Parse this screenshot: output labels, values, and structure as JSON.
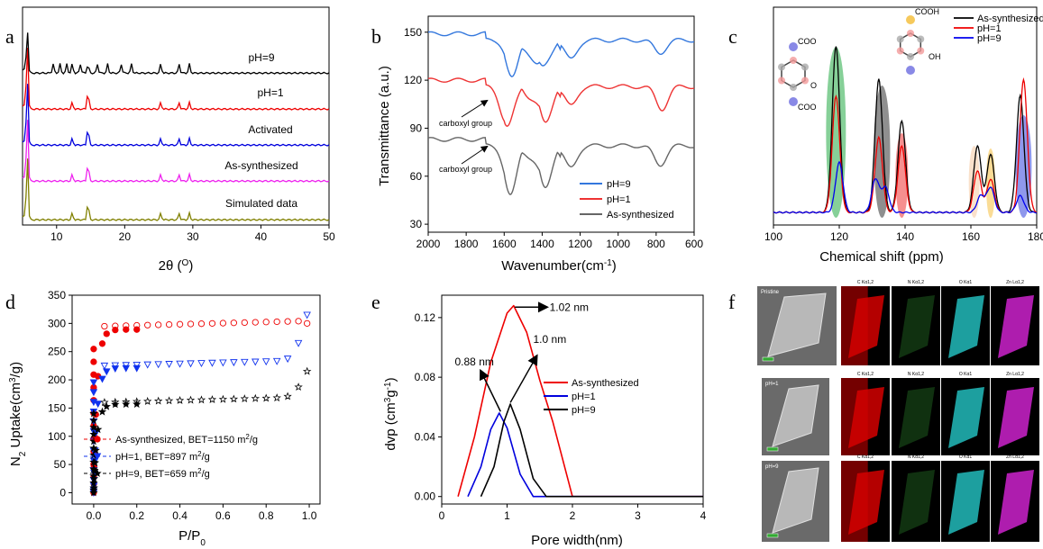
{
  "panels": {
    "a": {
      "letter": "a",
      "xlabel": "2θ (O)",
      "xlabel_main": "2θ (",
      "xlabel_sup": "O",
      "xlabel_close": ")"
    },
    "b": {
      "letter": "b",
      "xlabel": "Wavenumber(cm-1)",
      "ylabel": "Transmittance (a.u.)",
      "anno1": "carboxyl group",
      "anno2": "carboxyl group"
    },
    "c": {
      "letter": "c",
      "xlabel": "Chemical shift (ppm)",
      "struct_cooh": "COOH",
      "struct_oh": "OH",
      "struct_coo1": "COO",
      "struct_coo2": "COO",
      "struct_o": "O"
    },
    "d": {
      "letter": "d",
      "xlabel": "P/P0",
      "ylabel": "N2 Uptake(cm3/g)"
    },
    "e": {
      "letter": "e",
      "xlabel": "Pore width(nm)",
      "ylabel": "dvp (cm3g-1)",
      "anno1": "1.02 nm",
      "anno2": "1.0 nm",
      "anno3": "0.88 nm"
    },
    "f": {
      "letter": "f",
      "rows": [
        {
          "sem_label": "Pristine",
          "maps": [
            "C Kα1,2",
            "N Kα1,2",
            "O Kα1",
            "Zn Lα1,2"
          ]
        },
        {
          "sem_label": "pH=1",
          "maps": [
            "C Kα1,2",
            "N Kα1,2",
            "O Kα1",
            "Zn Lα1,2"
          ]
        },
        {
          "sem_label": "pH=9",
          "maps": [
            "C Kα1,2",
            "N Kα1,2",
            "O Kα1",
            "Zn Lα1,2"
          ]
        }
      ],
      "colors": {
        "C": "#d40000",
        "N": "#2e8b2e",
        "O": "#22bbbb",
        "Zn": "#cc22cc"
      }
    }
  },
  "chart_data": [
    {
      "panel": "a",
      "type": "line",
      "xlabel": "2θ (O)",
      "ylabel": "",
      "xlim": [
        5,
        50
      ],
      "xticks": [
        10,
        20,
        30,
        40,
        50
      ],
      "series": [
        {
          "name": "pH=9",
          "color": "#808000",
          "offset": 4,
          "peaks": [
            5.7,
            12.3,
            14.6,
            25.3,
            28.0,
            29.5
          ]
        },
        {
          "name": "pH=1",
          "color": "#ee22ee",
          "offset": 3,
          "peaks": [
            5.7,
            12.3,
            14.6,
            25.3,
            28.0,
            29.5
          ]
        },
        {
          "name": "Activated",
          "color": "#0000dd",
          "offset": 2,
          "peaks": [
            5.7,
            12.3,
            14.6,
            25.3,
            28.0,
            29.5
          ]
        },
        {
          "name": "As-synthesized",
          "color": "#ee0000",
          "offset": 1,
          "peaks": [
            5.7,
            12.3,
            14.6,
            25.3,
            28.0,
            29.5
          ]
        },
        {
          "name": "Simulated data",
          "color": "#000000",
          "offset": 0,
          "peaks": [
            5.7,
            9.5,
            10.5,
            11.5,
            12.3,
            13.5,
            14.6,
            16.0,
            17.5,
            19.5,
            21.0,
            25.3,
            28.0,
            29.5
          ]
        }
      ]
    },
    {
      "panel": "b",
      "type": "line",
      "xlabel": "Wavenumber(cm-1)",
      "ylabel": "Transmittance (a.u.)",
      "xlim": [
        2000,
        600
      ],
      "ylim": [
        25,
        160
      ],
      "xticks": [
        2000,
        1800,
        1600,
        1400,
        1200,
        1000,
        800,
        600
      ],
      "yticks": [
        30,
        60,
        90,
        120,
        150
      ],
      "series": [
        {
          "name": "pH=9",
          "color": "#3377dd",
          "base": 149,
          "dips": [
            [
              1560,
              18
            ],
            [
              1410,
              15
            ],
            [
              1250,
              12
            ],
            [
              780,
              8
            ]
          ]
        },
        {
          "name": "pH=1",
          "color": "#ee3333",
          "base": 120,
          "dips": [
            [
              1590,
              22
            ],
            [
              1390,
              18
            ],
            [
              1250,
              12
            ],
            [
              770,
              14
            ]
          ]
        },
        {
          "name": "As-synthesized",
          "color": "#666666",
          "base": 83,
          "dips": [
            [
              1570,
              26
            ],
            [
              1390,
              22
            ],
            [
              1250,
              14
            ],
            [
              780,
              12
            ]
          ]
        }
      ]
    },
    {
      "panel": "c",
      "type": "line",
      "xlabel": "Chemical shift (ppm)",
      "xlim": [
        100,
        180
      ],
      "xticks": [
        100,
        120,
        140,
        160,
        180
      ],
      "series": [
        {
          "name": "As-synthesized",
          "color": "#000000",
          "peaks": [
            [
              119,
              1.0
            ],
            [
              132,
              0.8
            ],
            [
              139,
              0.55
            ],
            [
              162,
              0.4
            ],
            [
              166,
              0.35
            ],
            [
              175,
              0.7
            ]
          ]
        },
        {
          "name": "pH=1",
          "color": "#ee0000",
          "peaks": [
            [
              119,
              0.7
            ],
            [
              132,
              0.45
            ],
            [
              139,
              0.4
            ],
            [
              162,
              0.25
            ],
            [
              166,
              0.2
            ],
            [
              176,
              0.8
            ]
          ]
        },
        {
          "name": "pH=9",
          "color": "#0000ee",
          "peaks": [
            [
              120,
              0.3
            ],
            [
              131,
              0.2
            ],
            [
              134,
              0.15
            ],
            [
              163,
              0.1
            ],
            [
              166,
              0.15
            ],
            [
              175,
              0.1
            ]
          ]
        }
      ],
      "highlights": [
        {
          "center": 119,
          "color": "#22aa44"
        },
        {
          "center": 133,
          "color": "#333333"
        },
        {
          "center": 139,
          "color": "#ee3333"
        },
        {
          "center": 161,
          "color": "#f5c8a0"
        },
        {
          "center": 166,
          "color": "#f5c040"
        },
        {
          "center": 176,
          "color": "#3344dd"
        }
      ]
    },
    {
      "panel": "d",
      "type": "scatter",
      "xlabel": "P/P0",
      "ylabel": "N2 Uptake(cm3/g)",
      "xlim": [
        -0.1,
        1.05
      ],
      "ylim": [
        -20,
        350
      ],
      "xticks": [
        0.0,
        0.2,
        0.4,
        0.6,
        0.8,
        1.0
      ],
      "yticks": [
        0,
        50,
        100,
        150,
        200,
        250,
        300,
        350
      ],
      "series": [
        {
          "name": "As-synthesized, BET=1150 m2/g",
          "color": "#ee0000",
          "marker": "circle",
          "plateau": 295,
          "end": 300
        },
        {
          "name": "pH=1, BET=897 m2/g",
          "color": "#1133ee",
          "marker": "triangle",
          "plateau": 225,
          "end": 315
        },
        {
          "name": "pH=9, BET=659 m2/g",
          "color": "#000000",
          "marker": "star",
          "plateau": 160,
          "end": 215
        }
      ]
    },
    {
      "panel": "e",
      "type": "line",
      "xlabel": "Pore width(nm)",
      "ylabel": "dvp (cm3g-1)",
      "xlim": [
        0,
        4
      ],
      "ylim": [
        -0.005,
        0.135
      ],
      "xticks": [
        0,
        1,
        2,
        3,
        4
      ],
      "yticks": [
        0.0,
        0.04,
        0.08,
        0.12
      ],
      "series": [
        {
          "name": "As-synthesized",
          "color": "#ee0000",
          "x": [
            0.25,
            0.5,
            0.75,
            1.0,
            1.1,
            1.3,
            1.5,
            1.7,
            2.0,
            4.0
          ],
          "y": [
            0.0,
            0.04,
            0.09,
            0.123,
            0.128,
            0.11,
            0.078,
            0.05,
            0.0,
            0.0
          ]
        },
        {
          "name": "pH=1",
          "color": "#0000dd",
          "x": [
            0.4,
            0.6,
            0.75,
            0.88,
            1.0,
            1.2,
            1.4,
            4.0
          ],
          "y": [
            0.0,
            0.02,
            0.045,
            0.056,
            0.046,
            0.015,
            0.0,
            0.0
          ]
        },
        {
          "name": "pH=9",
          "color": "#000000",
          "x": [
            0.6,
            0.8,
            0.95,
            1.05,
            1.2,
            1.4,
            1.6,
            4.0
          ],
          "y": [
            0.0,
            0.02,
            0.05,
            0.062,
            0.045,
            0.012,
            0.0,
            0.0
          ]
        }
      ]
    }
  ]
}
